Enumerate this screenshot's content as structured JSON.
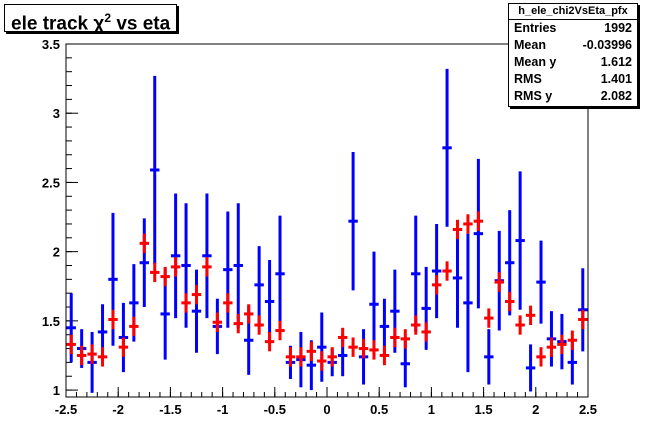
{
  "title": {
    "prefix": "ele track ",
    "symbol": "χ",
    "sup": "2",
    "suffix": " vs eta"
  },
  "stats": {
    "name": "h_ele_chi2VsEta_pfx",
    "rows": [
      {
        "label": "Entries",
        "value": "1992"
      },
      {
        "label": "Mean",
        "value": "-0.03996"
      },
      {
        "label": "Mean y",
        "value": "1.612"
      },
      {
        "label": "RMS",
        "value": "1.401"
      },
      {
        "label": "RMS y",
        "value": "2.082"
      }
    ]
  },
  "colors": {
    "blue": "#0000ff",
    "red": "#ff0000",
    "axis": "#000000"
  },
  "chart_data": {
    "type": "scatter",
    "title": "ele track χ2 vs eta",
    "xlim": [
      -2.5,
      2.5
    ],
    "ylim": [
      0.95,
      3.5
    ],
    "xticks": [
      "-2.5",
      "-2",
      "-1.5",
      "-1",
      "-0.5",
      "0",
      "0.5",
      "1",
      "1.5",
      "2",
      "2.5"
    ],
    "yticks": [
      "1",
      "1.5",
      "2",
      "2.5",
      "3",
      "3.5"
    ],
    "grid": false,
    "legend": "none",
    "bin_width": 0.1,
    "series": [
      {
        "color": "#0000ff",
        "x": [
          -2.45,
          -2.35,
          -2.25,
          -2.15,
          -2.05,
          -1.95,
          -1.85,
          -1.75,
          -1.65,
          -1.55,
          -1.45,
          -1.35,
          -1.25,
          -1.15,
          -1.05,
          -0.95,
          -0.85,
          -0.75,
          -0.65,
          -0.55,
          -0.45,
          -0.35,
          -0.25,
          -0.15,
          -0.05,
          0.05,
          0.15,
          0.25,
          0.35,
          0.45,
          0.55,
          0.65,
          0.75,
          0.85,
          0.95,
          1.05,
          1.15,
          1.25,
          1.35,
          1.45,
          1.55,
          1.65,
          1.75,
          1.85,
          1.95,
          2.05,
          2.15,
          2.25,
          2.35,
          2.45
        ],
        "y": [
          1.45,
          1.3,
          1.2,
          1.42,
          1.8,
          1.38,
          1.63,
          1.92,
          2.59,
          1.55,
          1.97,
          1.9,
          1.57,
          1.97,
          1.46,
          1.87,
          1.9,
          1.36,
          1.76,
          1.64,
          1.84,
          1.2,
          1.22,
          1.18,
          1.31,
          1.2,
          1.25,
          2.22,
          1.24,
          1.62,
          1.46,
          1.57,
          1.19,
          1.84,
          1.59,
          1.86,
          2.75,
          1.81,
          1.63,
          2.13,
          1.24,
          1.79,
          1.92,
          2.08,
          1.16,
          1.78,
          1.37,
          1.35,
          1.2,
          1.58
        ],
        "err": [
          0.25,
          0.14,
          0.22,
          0.2,
          0.48,
          0.25,
          0.28,
          0.32,
          0.68,
          0.33,
          0.45,
          0.45,
          0.3,
          0.45,
          0.2,
          0.42,
          0.45,
          0.25,
          0.28,
          0.3,
          0.42,
          0.12,
          0.2,
          0.18,
          0.25,
          0.1,
          0.15,
          0.5,
          0.2,
          0.38,
          0.2,
          0.3,
          0.17,
          0.42,
          0.3,
          0.34,
          0.57,
          0.36,
          0.5,
          0.54,
          0.2,
          0.36,
          0.38,
          0.5,
          0.17,
          0.3,
          0.2,
          0.2,
          0.16,
          0.3
        ]
      },
      {
        "color": "#ff0000",
        "x": [
          -2.45,
          -2.35,
          -2.25,
          -2.15,
          -2.05,
          -1.95,
          -1.85,
          -1.75,
          -1.65,
          -1.55,
          -1.45,
          -1.35,
          -1.25,
          -1.15,
          -1.05,
          -0.95,
          -0.85,
          -0.75,
          -0.65,
          -0.55,
          -0.45,
          -0.35,
          -0.25,
          -0.15,
          -0.05,
          0.05,
          0.15,
          0.25,
          0.35,
          0.45,
          0.55,
          0.65,
          0.75,
          0.85,
          0.95,
          1.05,
          1.15,
          1.25,
          1.35,
          1.45,
          1.55,
          1.65,
          1.75,
          1.85,
          1.95,
          2.05,
          2.15,
          2.25,
          2.35,
          2.45
        ],
        "y": [
          1.33,
          1.25,
          1.26,
          1.24,
          1.51,
          1.31,
          1.46,
          2.06,
          1.85,
          1.82,
          1.89,
          1.63,
          1.69,
          1.89,
          1.49,
          1.63,
          1.48,
          1.55,
          1.47,
          1.35,
          1.43,
          1.24,
          1.24,
          1.28,
          1.21,
          1.24,
          1.38,
          1.31,
          1.3,
          1.29,
          1.25,
          1.38,
          1.37,
          1.47,
          1.42,
          1.76,
          1.86,
          2.16,
          2.2,
          2.22,
          1.52,
          1.78,
          1.64,
          1.47,
          1.54,
          1.24,
          1.31,
          1.33,
          1.36,
          1.51
        ]
      }
    ]
  }
}
